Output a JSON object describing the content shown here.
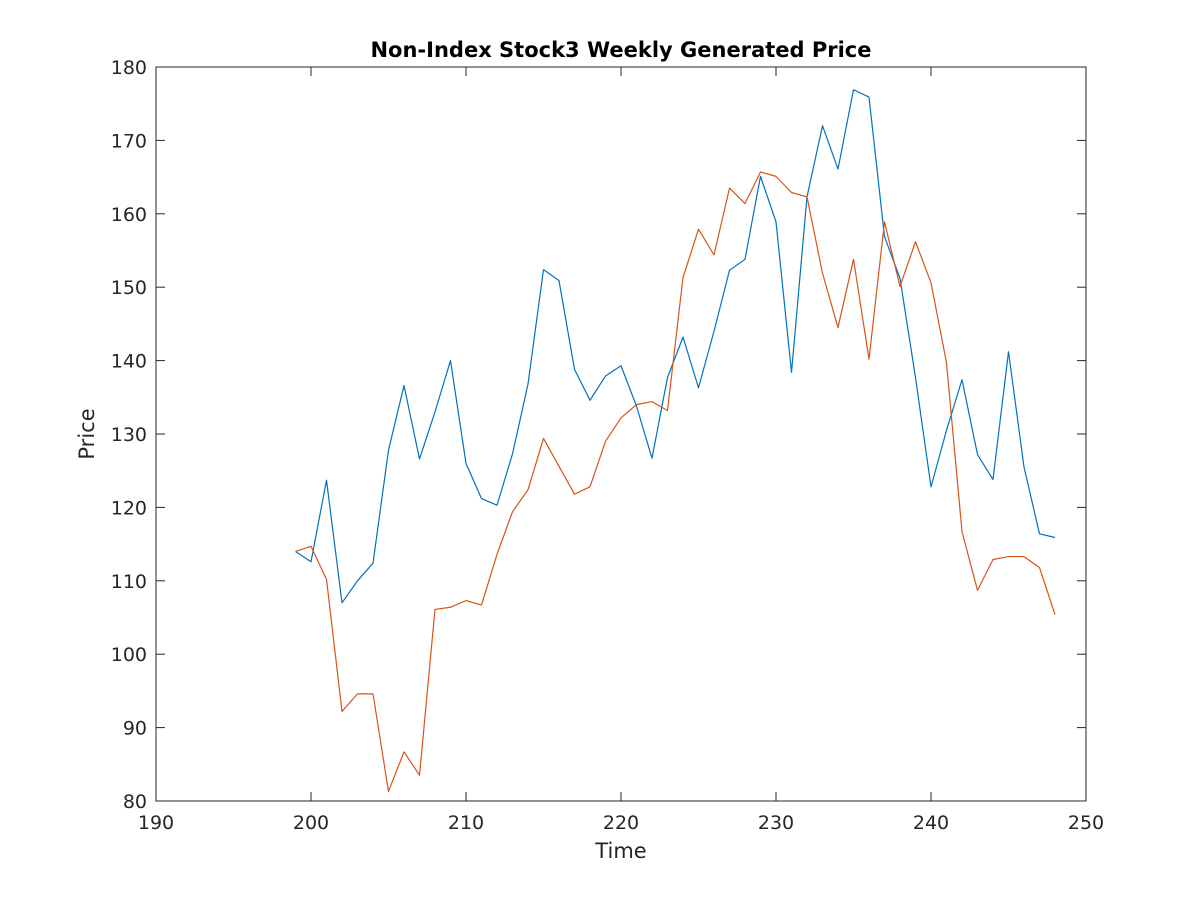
{
  "chart_data": {
    "type": "line",
    "title": "Non-Index Stock3 Weekly Generated Price",
    "xlabel": "Time",
    "ylabel": "Price",
    "xlim": [
      190,
      250
    ],
    "ylim": [
      80,
      180
    ],
    "xticks": [
      190,
      200,
      210,
      220,
      230,
      240,
      250
    ],
    "yticks": [
      80,
      90,
      100,
      110,
      120,
      130,
      140,
      150,
      160,
      170,
      180
    ],
    "grid": false,
    "legend": "none",
    "x": [
      199,
      200,
      201,
      202,
      203,
      204,
      205,
      206,
      207,
      208,
      209,
      210,
      211,
      212,
      213,
      214,
      215,
      216,
      217,
      218,
      219,
      220,
      221,
      222,
      223,
      224,
      225,
      226,
      227,
      228,
      229,
      230,
      231,
      232,
      233,
      234,
      235,
      236,
      237,
      238,
      239,
      240,
      241,
      242,
      243,
      244,
      245,
      246,
      247,
      248
    ],
    "series": [
      {
        "color": "#0072BD",
        "values": [
          114.0,
          112.6,
          123.7,
          107.0,
          110.0,
          112.4,
          127.8,
          136.6,
          126.6,
          133.0,
          140.0,
          126.0,
          121.2,
          120.3,
          127.3,
          136.8,
          152.4,
          150.9,
          138.8,
          134.6,
          137.9,
          139.3,
          133.8,
          126.7,
          137.7,
          143.2,
          136.3,
          144.0,
          152.3,
          153.8,
          165.1,
          158.9,
          138.4,
          162.3,
          172.0,
          166.1,
          176.9,
          175.9,
          156.9,
          151.2,
          137.7,
          122.8,
          130.5,
          137.4,
          127.2,
          123.8,
          141.2,
          125.5,
          116.4,
          115.9
        ]
      },
      {
        "color": "#D95319",
        "values": [
          114.0,
          114.7,
          110.2,
          92.2,
          94.6,
          94.6,
          81.3,
          86.7,
          83.5,
          106.1,
          106.4,
          107.3,
          106.7,
          113.6,
          119.4,
          122.4,
          129.4,
          125.6,
          121.8,
          122.8,
          129.0,
          132.2,
          134.0,
          134.4,
          133.2,
          151.3,
          157.9,
          154.4,
          163.5,
          161.4,
          165.7,
          165.1,
          162.9,
          162.3,
          151.9,
          144.5,
          153.8,
          140.2,
          158.9,
          150.1,
          156.2,
          150.6,
          139.7,
          116.7,
          108.7,
          112.9,
          113.3,
          113.3,
          111.8,
          105.4
        ]
      }
    ]
  }
}
